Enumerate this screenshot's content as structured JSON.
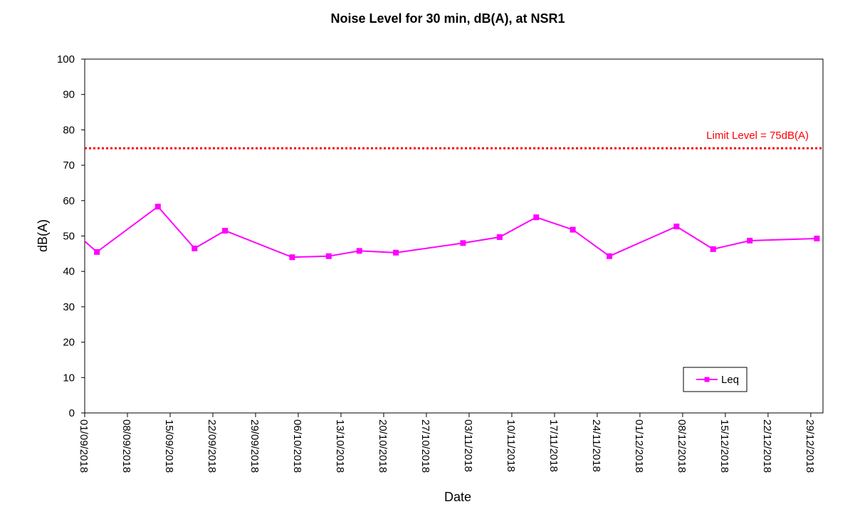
{
  "chart_data": {
    "type": "line",
    "title": "Noise Level for 30 min, dB(A), at NSR1",
    "xlabel": "Date",
    "ylabel": "dB(A)",
    "ylim": [
      0,
      100
    ],
    "yticks": [
      0,
      10,
      20,
      30,
      40,
      50,
      60,
      70,
      80,
      90,
      100
    ],
    "xlim": [
      "2018-09-01",
      "2018-12-31"
    ],
    "xtick_labels": [
      "01/09/2018",
      "08/09/2018",
      "15/09/2018",
      "22/09/2018",
      "29/09/2018",
      "06/10/2018",
      "13/10/2018",
      "20/10/2018",
      "27/10/2018",
      "03/11/2018",
      "10/11/2018",
      "17/11/2018",
      "24/11/2018",
      "01/12/2018",
      "08/12/2018",
      "15/12/2018",
      "22/12/2018",
      "29/12/2018"
    ],
    "grid": false,
    "legend_position": "bottom-right",
    "series": [
      {
        "name": "Leq",
        "color": "#FF00FF",
        "marker": "square",
        "x": [
          "2018-09-03",
          "2018-09-13",
          "2018-09-19",
          "2018-09-24",
          "2018-10-05",
          "2018-10-11",
          "2018-10-16",
          "2018-10-22",
          "2018-11-02",
          "2018-11-08",
          "2018-11-14",
          "2018-11-20",
          "2018-11-26",
          "2018-12-07",
          "2018-12-13",
          "2018-12-19",
          "2018-12-30"
        ],
        "values": [
          45.5,
          58.3,
          46.5,
          51.5,
          44.0,
          44.3,
          45.8,
          45.3,
          48.0,
          49.7,
          55.3,
          51.8,
          44.3,
          52.7,
          46.3,
          48.7,
          49.3
        ]
      }
    ],
    "reference_lines": [
      {
        "label": "Limit Level = 75dB(A)",
        "value": 74.8,
        "color": "#FF0000",
        "style": "dotted"
      }
    ]
  }
}
